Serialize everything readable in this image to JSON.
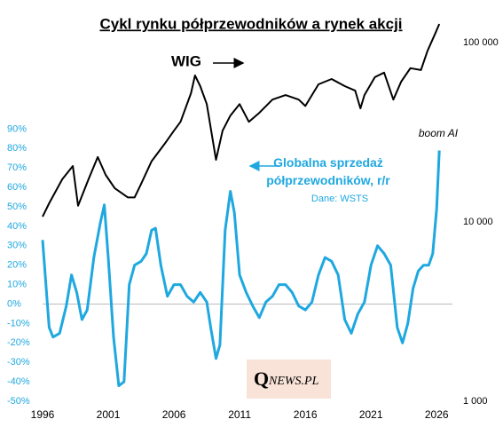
{
  "chart_data": {
    "type": "line",
    "title": "Cykl rynku półprzewodników  a rynek akcji",
    "xlim": [
      1996,
      2027.2
    ],
    "xticks": [
      1996,
      2001,
      2006,
      2011,
      2016,
      2021,
      2026
    ],
    "ylim": [
      -50,
      145
    ],
    "yticks": [
      {
        "value": -50,
        "label": "-50%"
      },
      {
        "value": -40,
        "label": "-40%"
      },
      {
        "value": -30,
        "label": "-30%"
      },
      {
        "value": -20,
        "label": "-20%"
      },
      {
        "value": -10,
        "label": "-10%"
      },
      {
        "value": 0,
        "label": "0%"
      },
      {
        "value": 10,
        "label": "10%"
      },
      {
        "value": 20,
        "label": "20%"
      },
      {
        "value": 30,
        "label": "30%"
      },
      {
        "value": 40,
        "label": "40%"
      },
      {
        "value": 50,
        "label": "50%"
      },
      {
        "value": 60,
        "label": "60%"
      },
      {
        "value": 70,
        "label": "70%"
      },
      {
        "value": 80,
        "label": "80%"
      },
      {
        "value": 90,
        "label": "90%"
      }
    ],
    "y2lim": [
      1000,
      130000
    ],
    "y2log": true,
    "y2ticks": [
      {
        "value": 1000,
        "label": "1 000"
      },
      {
        "value": 10000,
        "label": "10 000"
      },
      {
        "value": 100000,
        "label": "100 000"
      }
    ],
    "series": [
      {
        "name": "WIG",
        "color": "#000000",
        "axis": "y2",
        "x": [
          1996.0,
          1996.5,
          1997.5,
          1998.3,
          1998.7,
          1999.5,
          2000.2,
          2000.8,
          2001.5,
          2002.5,
          2003.0,
          2003.5,
          2004.3,
          2005.3,
          2006.0,
          2006.5,
          2007.3,
          2007.6,
          2008.0,
          2008.5,
          2009.0,
          2009.2,
          2009.7,
          2010.3,
          2011.0,
          2011.7,
          2012.5,
          2013.5,
          2014.5,
          2015.5,
          2016.0,
          2017.0,
          2018.0,
          2019.0,
          2019.8,
          2020.2,
          2020.5,
          2021.3,
          2022.0,
          2022.7,
          2023.3,
          2024.0,
          2024.8,
          2025.3,
          2025.9,
          2026.2
        ],
        "values": [
          10700,
          12700,
          17300,
          20500,
          12300,
          17300,
          23000,
          18300,
          15400,
          13700,
          13700,
          16300,
          21800,
          27300,
          32300,
          36200,
          52200,
          65600,
          57200,
          45400,
          27300,
          22200,
          32300,
          39200,
          45400,
          36200,
          40600,
          48100,
          51000,
          48100,
          44300,
          58500,
          62700,
          57200,
          54000,
          43000,
          51000,
          64200,
          68000,
          48100,
          60600,
          72000,
          70300,
          90000,
          113000,
          127000
        ]
      },
      {
        "name": "Globalna sprzedaż półprzewodników, r/r",
        "color": "#1fa8e0",
        "axis": "y",
        "x": [
          1996.0,
          1996.5,
          1996.8,
          1997.3,
          1997.8,
          1998.2,
          1998.6,
          1999.0,
          1999.4,
          1999.9,
          2000.4,
          2000.7,
          2001.0,
          2001.4,
          2001.8,
          2002.2,
          2002.6,
          2003.0,
          2003.5,
          2003.9,
          2004.3,
          2004.6,
          2005.0,
          2005.5,
          2006.0,
          2006.5,
          2007.0,
          2007.5,
          2008.0,
          2008.5,
          2008.8,
          2009.2,
          2009.5,
          2009.9,
          2010.3,
          2010.6,
          2011.0,
          2011.5,
          2012.0,
          2012.5,
          2013.0,
          2013.5,
          2014.0,
          2014.5,
          2015.0,
          2015.5,
          2016.0,
          2016.5,
          2017.0,
          2017.5,
          2018.0,
          2018.5,
          2019.0,
          2019.5,
          2020.0,
          2020.5,
          2021.0,
          2021.5,
          2022.0,
          2022.5,
          2023.0,
          2023.4,
          2023.8,
          2024.2,
          2024.6,
          2025.0,
          2025.4,
          2025.7,
          2026.0,
          2026.2
        ],
        "values": [
          33,
          -12,
          -17,
          -15,
          -1,
          15,
          6,
          -8,
          -3,
          24,
          42,
          51,
          24,
          -17,
          -42,
          -40,
          10,
          20,
          22,
          26,
          38,
          39,
          20,
          4,
          10,
          10,
          4,
          1,
          6,
          1,
          -12,
          -28,
          -21,
          38,
          58,
          47,
          15,
          6,
          -1,
          -7,
          1,
          4,
          10,
          10,
          6,
          -1,
          -3,
          1,
          15,
          24,
          22,
          15,
          -8,
          -15,
          -5,
          1,
          20,
          30,
          26,
          20,
          -12,
          -20,
          -10,
          8,
          17,
          20,
          20,
          26,
          49,
          79
        ]
      }
    ],
    "source": "Dane: WSTS",
    "annotation": "boom AI",
    "logo": [
      "Q",
      "NEWS.PL"
    ]
  }
}
